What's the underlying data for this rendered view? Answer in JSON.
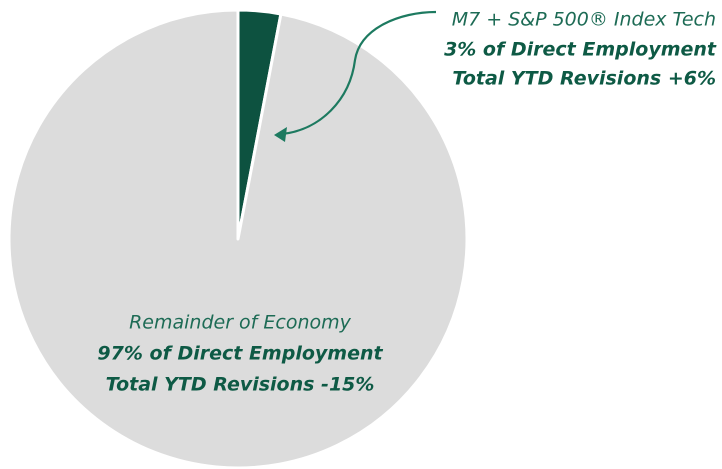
{
  "chart_data": {
    "type": "pie",
    "categories": [
      "M7 + S&P 500® Index Tech",
      "Remainder of Economy"
    ],
    "values": [
      3,
      97
    ],
    "value_labels": [
      "3% of Direct Employment",
      "97% of Direct Employment"
    ],
    "annotations": [
      "Total YTD Revisions +6%",
      "Total YTD Revisions -15%"
    ],
    "colors": [
      "#0d5240",
      "#dcdcdc"
    ]
  }
}
